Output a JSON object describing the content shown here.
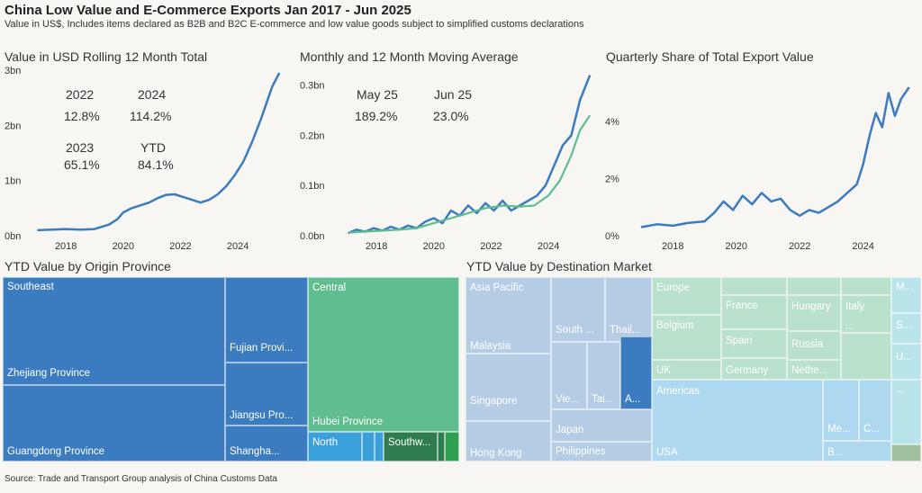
{
  "header": {
    "title": "China Low Value and E-Commerce Exports Jan 2017 - Jun 2025",
    "subtitle": "Value in US$, Includes items declared as B2B and B2C E-commerce and low value goods subject to simplified customs declarations"
  },
  "footer": {
    "source": "Source: Trade and Transport Group analysis of China Customs Data"
  },
  "colors": {
    "blue": "#3b7bbf",
    "green": "#5fbd8f",
    "background": "#f7f6f2"
  },
  "kpis1": [
    {
      "label": "2022",
      "value": "12.8%"
    },
    {
      "label": "2024",
      "value": "114.2%"
    },
    {
      "label": "2023",
      "value": "65.1%"
    },
    {
      "label": "YTD",
      "value": "84.1%"
    }
  ],
  "kpis2": [
    {
      "label": "May 25",
      "value": "189.2%"
    },
    {
      "label": "Jun 25",
      "value": "23.0%"
    }
  ],
  "chart_data": [
    {
      "type": "line",
      "title": "Value in USD Rolling 12 Month Total",
      "x_ticks": [
        "2018",
        "2020",
        "2022",
        "2024"
      ],
      "y_ticks": [
        "0bn",
        "1bn",
        "2bn",
        "3bn"
      ],
      "ylim": [
        0,
        3
      ],
      "series": [
        {
          "x": [
            2017.0,
            2017.5,
            2018.0,
            2018.5,
            2019.0,
            2019.5,
            2019.8,
            2020.0,
            2020.3,
            2020.6,
            2020.9,
            2021.2,
            2021.5,
            2021.8,
            2022.1,
            2022.4,
            2022.7,
            2023.0,
            2023.3,
            2023.6,
            2023.9,
            2024.2,
            2024.5,
            2024.8,
            2025.0,
            2025.2,
            2025.45
          ],
          "y": [
            0.1,
            0.11,
            0.12,
            0.11,
            0.12,
            0.2,
            0.3,
            0.42,
            0.5,
            0.55,
            0.6,
            0.68,
            0.74,
            0.75,
            0.7,
            0.65,
            0.6,
            0.65,
            0.75,
            0.9,
            1.1,
            1.35,
            1.7,
            2.1,
            2.4,
            2.7,
            2.95
          ]
        }
      ]
    },
    {
      "type": "line",
      "title": "Monthly and 12 Month Moving Average",
      "x_ticks": [
        "2018",
        "2020",
        "2022",
        "2024"
      ],
      "y_ticks": [
        "0.0bn",
        "0.1bn",
        "0.2bn",
        "0.3bn"
      ],
      "ylim": [
        0,
        0.33
      ],
      "series": [
        {
          "x": [
            2017.0,
            2017.3,
            2017.6,
            2017.9,
            2018.2,
            2018.5,
            2018.8,
            2019.1,
            2019.4,
            2019.7,
            2020.0,
            2020.3,
            2020.6,
            2020.9,
            2021.2,
            2021.5,
            2021.8,
            2022.1,
            2022.4,
            2022.7,
            2023.0,
            2023.3,
            2023.6,
            2023.9,
            2024.2,
            2024.5,
            2024.8,
            2025.1,
            2025.45
          ],
          "y": [
            0.005,
            0.012,
            0.008,
            0.015,
            0.01,
            0.018,
            0.012,
            0.02,
            0.015,
            0.028,
            0.035,
            0.025,
            0.05,
            0.04,
            0.06,
            0.045,
            0.065,
            0.05,
            0.07,
            0.05,
            0.06,
            0.07,
            0.08,
            0.1,
            0.14,
            0.18,
            0.2,
            0.27,
            0.32
          ]
        },
        {
          "x": [
            2017.0,
            2017.6,
            2018.2,
            2018.8,
            2019.4,
            2020.0,
            2020.6,
            2021.2,
            2021.8,
            2022.4,
            2023.0,
            2023.5,
            2024.0,
            2024.4,
            2024.8,
            2025.1,
            2025.45
          ],
          "y": [
            0.006,
            0.008,
            0.01,
            0.012,
            0.015,
            0.025,
            0.035,
            0.045,
            0.055,
            0.06,
            0.058,
            0.06,
            0.08,
            0.11,
            0.16,
            0.21,
            0.24
          ]
        }
      ]
    },
    {
      "type": "line",
      "title": "Quarterly Share of Total Export Value",
      "x_ticks": [
        "2018",
        "2020",
        "2022",
        "2024"
      ],
      "y_ticks": [
        "0%",
        "2%",
        "4%"
      ],
      "ylim": [
        0,
        5.8
      ],
      "series": [
        {
          "x": [
            2017.0,
            2017.5,
            2018.0,
            2018.5,
            2019.0,
            2019.3,
            2019.6,
            2019.9,
            2020.2,
            2020.5,
            2020.8,
            2021.1,
            2021.4,
            2021.7,
            2022.0,
            2022.3,
            2022.6,
            2022.9,
            2023.2,
            2023.5,
            2023.8,
            2024.0,
            2024.2,
            2024.4,
            2024.6,
            2024.8,
            2025.0,
            2025.2,
            2025.45
          ],
          "y": [
            0.3,
            0.4,
            0.35,
            0.45,
            0.5,
            0.8,
            1.2,
            0.9,
            1.4,
            1.1,
            1.5,
            1.2,
            1.3,
            0.9,
            0.7,
            0.9,
            0.8,
            1.0,
            1.2,
            1.5,
            1.8,
            2.5,
            3.5,
            4.3,
            3.8,
            5.0,
            4.2,
            4.8,
            5.2
          ]
        }
      ]
    }
  ],
  "treemaps": {
    "origin": {
      "title": "YTD Value by Origin Province",
      "labels": {
        "southeast": "Southeast",
        "zhejiang": "Zhejiang Province",
        "guangdong": "Guangdong Province",
        "fujian": "Fujian Provi...",
        "jiangsu": "Jiangsu Pro...",
        "shanghai": "Shangha...",
        "central": "Central",
        "hubei": "Hubei Province",
        "north": "North",
        "southwest": "Southw..."
      }
    },
    "destination": {
      "title": "YTD Value by Destination Market",
      "labels": {
        "asia_pacific": "Asia Pacific",
        "malaysia": "Malaysia",
        "singapore": "Singapore",
        "hong_kong": "Hong Kong",
        "south": "South ...",
        "thai": "Thail...",
        "vie": "Vie...",
        "tai": "Tai...",
        "a_short": "A...",
        "japan": "Japan",
        "philippines": "Philippines",
        "europe": "Europe",
        "belgium": "Belgium",
        "uk": "UK",
        "france": "France",
        "spain": "Spain",
        "germany": "Germany",
        "hungary": "Hungary",
        "italy": "Italy",
        "russia": "Russia",
        "netherlands": "Nethe...",
        "dots1": "...",
        "dots2": "...",
        "americas": "Americas",
        "usa": "USA",
        "me": "Me...",
        "c": "C...",
        "b": "B...",
        "m": "M...",
        "s": "S...",
        "u": "U..."
      }
    }
  }
}
